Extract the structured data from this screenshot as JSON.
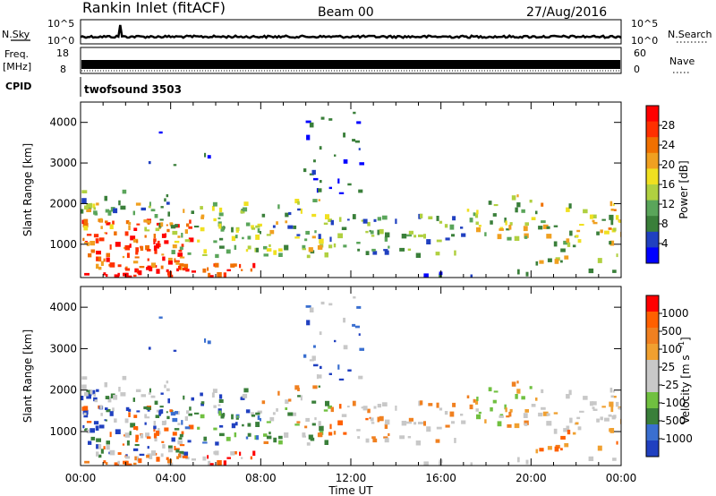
{
  "header": {
    "station": "Rankin Inlet (fitACF)",
    "beam": "Beam 00",
    "date": "27/Aug/2016"
  },
  "strips": {
    "nsky": {
      "label": "N.Sky",
      "ticks": [
        "10^5",
        "10^0"
      ]
    },
    "nsearch": {
      "label": "N.Search",
      "ticks": [
        "10^5",
        "10^0"
      ]
    },
    "freq": {
      "label_top": "Freq.",
      "label_bottom": "[MHz]",
      "ticks": [
        "18",
        "8"
      ]
    },
    "nave": {
      "label": "Nave",
      "ticks": [
        "60",
        "0"
      ]
    },
    "cpid": {
      "label": "CPID",
      "value": "twofsound 3503"
    }
  },
  "colors": {
    "power_scale": [
      "#0000ff",
      "#2040c0",
      "#3a7f3a",
      "#5aa55a",
      "#b0d040",
      "#f0e020",
      "#f0a020",
      "#f07000",
      "#ff3000",
      "#ff0000"
    ],
    "velocity_scale": [
      "#2040c0",
      "#3a6fd0",
      "#3a7f3a",
      "#70c040",
      "#c8c8c8",
      "#c8c8c8",
      "#f0a030",
      "#f08020",
      "#ff6000",
      "#ff0000"
    ],
    "ground_scatter": "#c8c8c8"
  },
  "chart_data": [
    {
      "type": "heatmap",
      "panel": "power",
      "xlabel": "",
      "ylabel": "Slant Range [km]",
      "x_ticks": [
        "00:00",
        "04:00",
        "08:00",
        "12:00",
        "16:00",
        "20:00",
        "00:00"
      ],
      "y_ticks": [
        "1000",
        "2000",
        "3000",
        "4000"
      ],
      "ylim": [
        180,
        4500
      ],
      "xlim_hours": [
        0,
        24
      ],
      "colorbar_label": "Power [dB]",
      "colorbar_ticks": [
        "28",
        "24",
        "20",
        "16",
        "12",
        "8",
        "4"
      ],
      "colorbar_range": [
        0,
        32
      ]
    },
    {
      "type": "heatmap",
      "panel": "velocity",
      "xlabel": "Time UT",
      "ylabel": "Slant Range [km]",
      "x_ticks": [
        "00:00",
        "04:00",
        "08:00",
        "12:00",
        "16:00",
        "20:00",
        "00:00"
      ],
      "y_ticks": [
        "1000",
        "2000",
        "3000",
        "4000"
      ],
      "ylim": [
        180,
        4500
      ],
      "xlim_hours": [
        0,
        24
      ],
      "colorbar_label": "Velocity [m s",
      "colorbar_unit_exp": "-1",
      "colorbar_unit_close": "]",
      "colorbar_ticks": [
        "1000",
        "500",
        "100",
        "25",
        "-25",
        "-100",
        "-500",
        "-1000"
      ]
    }
  ]
}
